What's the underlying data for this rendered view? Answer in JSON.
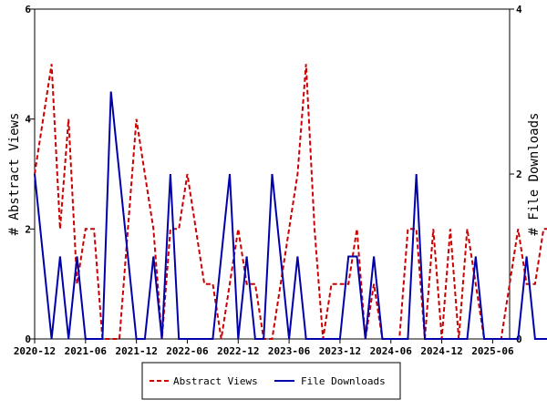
{
  "chart_data": {
    "type": "line",
    "x_tick_labels": [
      "2020-12",
      "2021-06",
      "2021-12",
      "2022-06",
      "2022-12",
      "2023-06",
      "2023-12",
      "2024-06",
      "2024-12",
      "2025-06"
    ],
    "x_range_months": [
      "2020-12",
      "2025-08"
    ],
    "ylabel_left": "# Abstract Views",
    "ylabel_right": "# File Downloads",
    "ylim_left": [
      0,
      6
    ],
    "ylim_right": [
      0,
      4
    ],
    "yticks_left": [
      0,
      2,
      4,
      6
    ],
    "yticks_right": [
      0,
      2,
      4
    ],
    "grid": false,
    "legend_position": "bottom",
    "series": [
      {
        "name": "Abstract Views",
        "axis": "left",
        "color": "#cc0000",
        "style": "dashed",
        "values": [
          3,
          4,
          5,
          2,
          4,
          1,
          2,
          2,
          0,
          0,
          0,
          2,
          4,
          3,
          2,
          0,
          2,
          2,
          3,
          2,
          1,
          1,
          0,
          1,
          2,
          1,
          1,
          0,
          0,
          1,
          2,
          3,
          5,
          2,
          0,
          1,
          1,
          1,
          2,
          0,
          1,
          0,
          0,
          0,
          2,
          2,
          0,
          2,
          0,
          2,
          0,
          2,
          1,
          0,
          0,
          0,
          1,
          2,
          1,
          1,
          2,
          2
        ]
      },
      {
        "name": "File Downloads",
        "axis": "right",
        "color": "#0000aa",
        "style": "solid",
        "values": [
          2,
          1,
          0,
          1,
          0,
          1,
          0,
          0,
          0,
          3,
          2,
          1,
          0,
          0,
          1,
          0,
          2,
          0,
          0,
          0,
          0,
          0,
          1,
          2,
          0,
          1,
          0,
          0,
          2,
          1,
          0,
          1,
          0,
          0,
          0,
          0,
          0,
          1,
          1,
          0,
          1,
          0,
          0,
          0,
          0,
          2,
          0,
          0,
          0,
          0,
          0,
          0,
          1,
          0,
          0,
          0,
          0,
          0,
          1,
          0,
          0,
          0
        ]
      }
    ]
  }
}
